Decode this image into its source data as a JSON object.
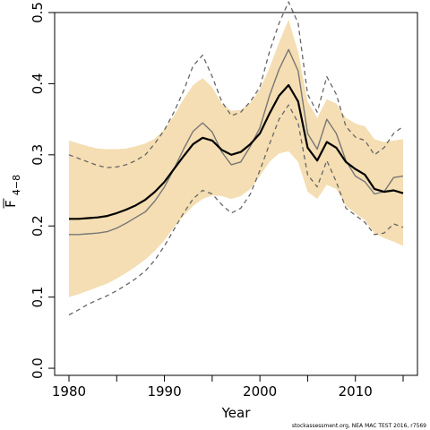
{
  "chart_data": {
    "type": "line",
    "xlabel": "Year",
    "ylabel": "F",
    "ylabel_subscript": "4−8",
    "xlim": [
      1978.5,
      2016.5
    ],
    "ylim": [
      -0.01,
      0.5
    ],
    "xticks": [
      1980,
      1990,
      2000,
      2010
    ],
    "xtick_labels": [
      "1980",
      "1990",
      "2000",
      "2010"
    ],
    "minor_xticks": [
      1985,
      1995,
      2005,
      2015
    ],
    "yticks": [
      0.0,
      0.1,
      0.2,
      0.3,
      0.4,
      0.5
    ],
    "ytick_labels": [
      "0.0",
      "0.1",
      "0.2",
      "0.3",
      "0.4",
      "0.5"
    ],
    "grid": false,
    "legend": "none",
    "colors": {
      "band": "#f5deb3",
      "estimate": "#000000",
      "line2": "#777777",
      "dashed": "#666666"
    },
    "x": [
      1980,
      1981,
      1982,
      1983,
      1984,
      1985,
      1986,
      1987,
      1988,
      1989,
      1990,
      1991,
      1992,
      1993,
      1994,
      1995,
      1996,
      1997,
      1998,
      1999,
      2000,
      2001,
      2002,
      2003,
      2004,
      2005,
      2006,
      2007,
      2008,
      2009,
      2010,
      2011,
      2012,
      2013,
      2014,
      2015
    ],
    "series": [
      {
        "role": "band",
        "lower": [
          0.1,
          0.104,
          0.109,
          0.114,
          0.119,
          0.126,
          0.134,
          0.143,
          0.153,
          0.165,
          0.18,
          0.198,
          0.214,
          0.228,
          0.238,
          0.243,
          0.242,
          0.238,
          0.242,
          0.252,
          0.27,
          0.29,
          0.302,
          0.305,
          0.29,
          0.248,
          0.238,
          0.258,
          0.252,
          0.228,
          0.218,
          0.208,
          0.19,
          0.183,
          0.178,
          0.172
        ],
        "upper": [
          0.32,
          0.316,
          0.312,
          0.309,
          0.308,
          0.308,
          0.309,
          0.312,
          0.316,
          0.323,
          0.336,
          0.355,
          0.378,
          0.398,
          0.408,
          0.395,
          0.372,
          0.362,
          0.363,
          0.373,
          0.392,
          0.422,
          0.458,
          0.49,
          0.445,
          0.375,
          0.352,
          0.378,
          0.372,
          0.352,
          0.344,
          0.34,
          0.322,
          0.318,
          0.32,
          0.322
        ]
      },
      {
        "role": "estimate",
        "values": [
          0.21,
          0.21,
          0.211,
          0.212,
          0.214,
          0.218,
          0.223,
          0.229,
          0.237,
          0.248,
          0.262,
          0.28,
          0.298,
          0.315,
          0.324,
          0.32,
          0.307,
          0.3,
          0.304,
          0.315,
          0.33,
          0.358,
          0.383,
          0.398,
          0.375,
          0.31,
          0.292,
          0.318,
          0.31,
          0.29,
          0.28,
          0.272,
          0.252,
          0.248,
          0.25,
          0.246
        ]
      },
      {
        "role": "line2",
        "values": [
          0.188,
          0.188,
          0.189,
          0.19,
          0.192,
          0.197,
          0.204,
          0.212,
          0.22,
          0.235,
          0.255,
          0.28,
          0.308,
          0.333,
          0.345,
          0.332,
          0.304,
          0.286,
          0.29,
          0.312,
          0.338,
          0.383,
          0.42,
          0.448,
          0.418,
          0.33,
          0.308,
          0.35,
          0.33,
          0.292,
          0.27,
          0.262,
          0.245,
          0.248,
          0.268,
          0.27
        ]
      },
      {
        "role": "dashed_upper",
        "values": [
          0.3,
          0.295,
          0.29,
          0.285,
          0.282,
          0.283,
          0.286,
          0.292,
          0.3,
          0.316,
          0.335,
          0.36,
          0.39,
          0.425,
          0.44,
          0.41,
          0.375,
          0.355,
          0.36,
          0.375,
          0.395,
          0.445,
          0.485,
          0.515,
          0.485,
          0.385,
          0.36,
          0.41,
          0.385,
          0.34,
          0.325,
          0.32,
          0.3,
          0.31,
          0.33,
          0.34
        ]
      },
      {
        "role": "dashed_lower",
        "values": [
          0.075,
          0.082,
          0.09,
          0.096,
          0.102,
          0.109,
          0.117,
          0.126,
          0.137,
          0.152,
          0.172,
          0.195,
          0.218,
          0.238,
          0.25,
          0.245,
          0.23,
          0.218,
          0.225,
          0.245,
          0.278,
          0.315,
          0.35,
          0.37,
          0.345,
          0.272,
          0.255,
          0.292,
          0.262,
          0.225,
          0.215,
          0.205,
          0.188,
          0.19,
          0.203,
          0.198
        ]
      }
    ]
  },
  "footer": "stockassessment.org, NEA MAC TEST 2016, r7569"
}
